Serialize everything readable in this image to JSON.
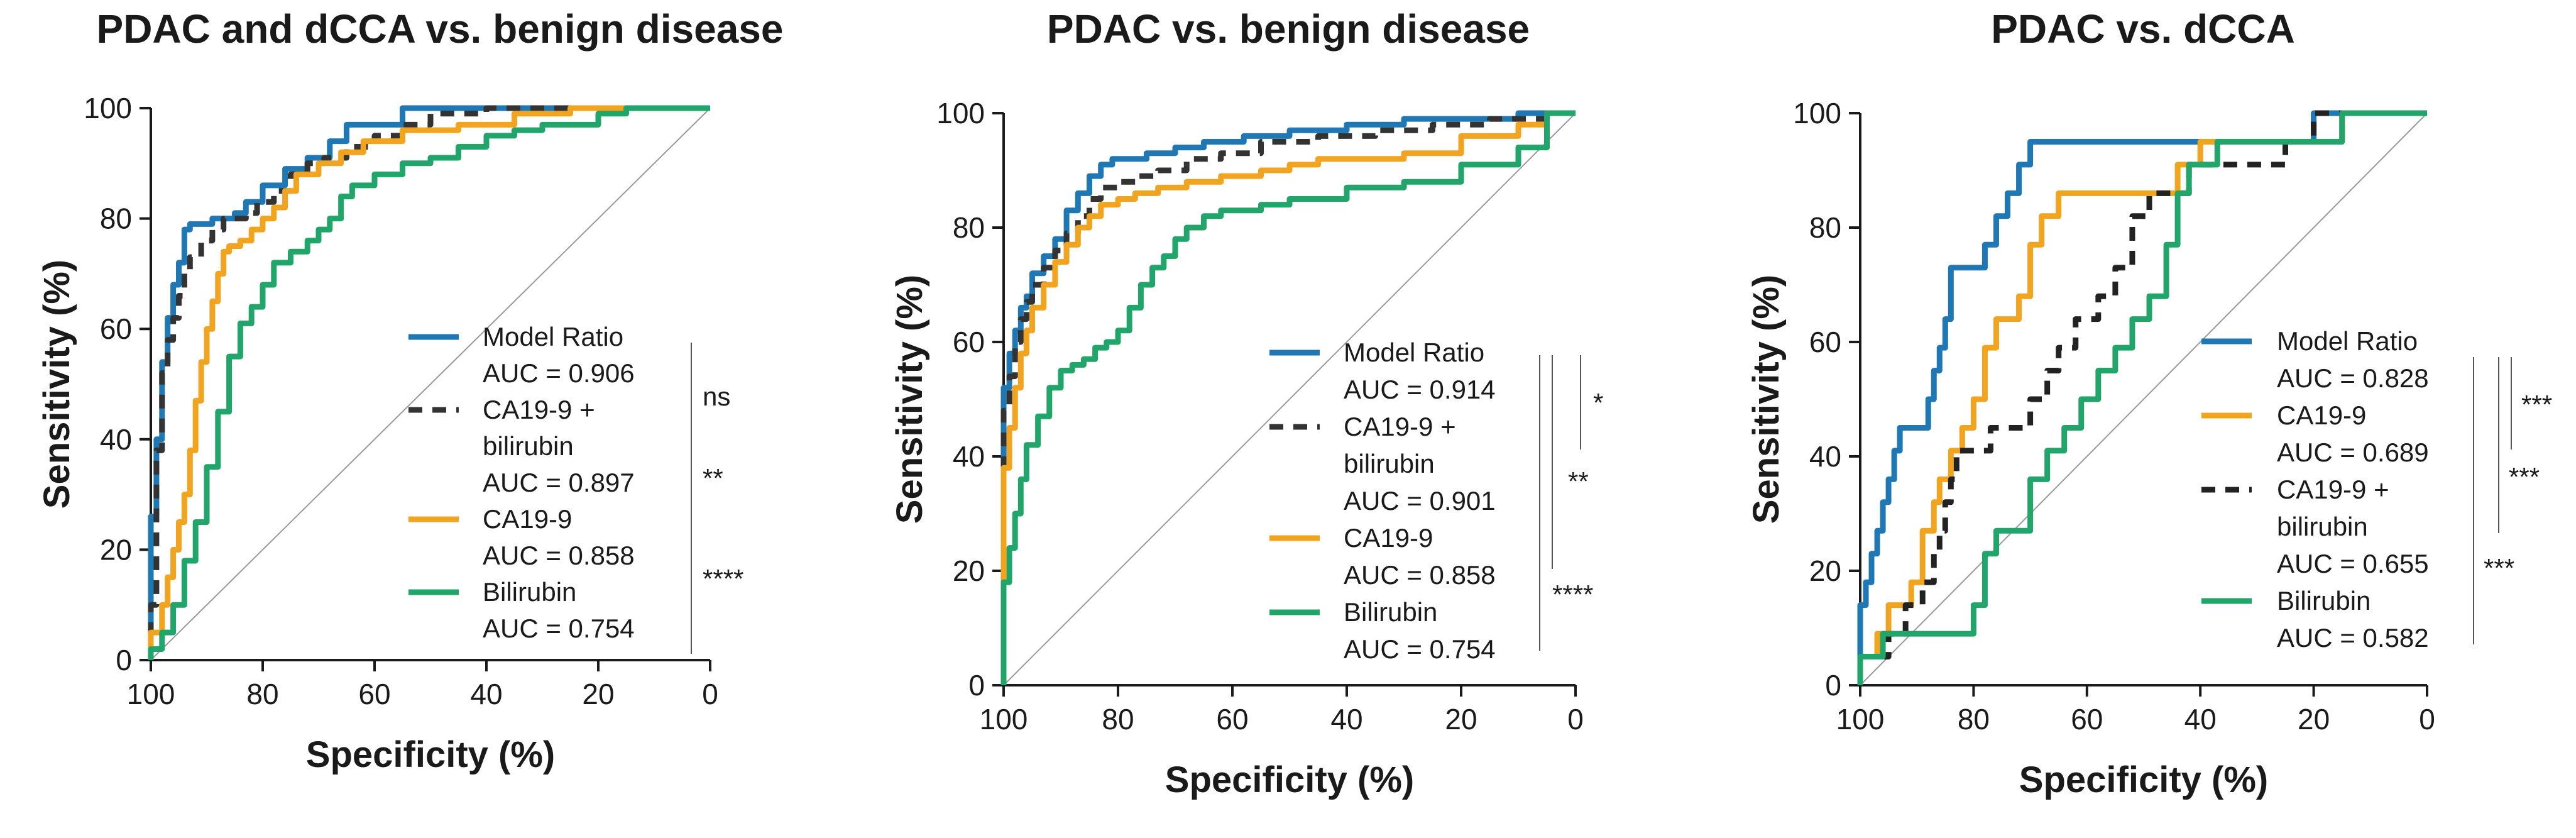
{
  "chart_data": [
    {
      "type": "line",
      "title": "PDAC and dCCA vs. benign disease",
      "xlabel": "Specificity (%)",
      "ylabel": "Sensitivity (%)",
      "xlim": [
        100,
        0
      ],
      "ylim": [
        0,
        100
      ],
      "xticks": [
        "100",
        "80",
        "60",
        "40",
        "20",
        "0"
      ],
      "yticks": [
        "0",
        "20",
        "40",
        "60",
        "80",
        "100"
      ],
      "legend_position": "bottom-right",
      "series": [
        {
          "name": "Model Ratio",
          "auc_label": "AUC = 0.906",
          "color": "#1f77b4",
          "dash": "solid",
          "x": [
            100,
            100,
            99,
            98,
            98,
            97,
            97,
            96,
            96,
            95,
            94,
            93,
            91,
            89,
            86,
            85,
            83,
            80,
            76,
            72,
            68,
            65,
            55,
            45,
            30,
            15,
            0
          ],
          "y": [
            0,
            12,
            26,
            40,
            50,
            54,
            58,
            62,
            65,
            68,
            72,
            78,
            79,
            79,
            80,
            80,
            81,
            83,
            86,
            89,
            91,
            94,
            97,
            100,
            100,
            100,
            100
          ]
        },
        {
          "name": "CA19-9 + bilirubin",
          "auc_label": "AUC = 0.897",
          "color": "#333333",
          "dash": "dashed",
          "x": [
            100,
            99,
            99,
            98,
            97,
            96,
            95,
            94,
            93,
            91,
            89,
            87,
            85,
            83,
            81,
            78,
            75,
            72,
            69,
            65,
            60,
            55,
            50,
            40,
            25,
            10,
            0
          ],
          "y": [
            0,
            10,
            22,
            38,
            52,
            58,
            62,
            66,
            70,
            73,
            76,
            78,
            80,
            80,
            81,
            83,
            85,
            88,
            90,
            91,
            93,
            95,
            97,
            99,
            100,
            100,
            100
          ]
        },
        {
          "name": "CA19-9",
          "auc_label": "AUC = 0.858",
          "color": "#f0a41f",
          "dash": "solid",
          "x": [
            100,
            98,
            97,
            96,
            95,
            94,
            93,
            92,
            91,
            90,
            89,
            88,
            87,
            86,
            84,
            82,
            80,
            78,
            76,
            74,
            70,
            66,
            62,
            55,
            45,
            35,
            25,
            10,
            0
          ],
          "y": [
            0,
            5,
            10,
            15,
            20,
            25,
            30,
            38,
            47,
            54,
            60,
            65,
            70,
            74,
            75,
            76,
            78,
            80,
            82,
            85,
            88,
            90,
            92,
            94,
            96,
            97,
            99,
            100,
            100
          ]
        },
        {
          "name": "Bilirubin",
          "auc_label": "AUC = 0.754",
          "color": "#22a56b",
          "dash": "solid",
          "x": [
            100,
            98,
            96,
            94,
            92,
            90,
            88,
            86,
            84,
            82,
            80,
            78,
            75,
            72,
            70,
            68,
            66,
            64,
            60,
            55,
            50,
            45,
            40,
            35,
            30,
            20,
            15,
            10,
            0
          ],
          "y": [
            0,
            2,
            5,
            10,
            18,
            25,
            35,
            45,
            55,
            61,
            64,
            68,
            72,
            74,
            76,
            78,
            80,
            84,
            86,
            88,
            90,
            91,
            93,
            95,
            96,
            97,
            99,
            100,
            100
          ]
        }
      ],
      "significance": [
        {
          "label": "ns",
          "between": "Model Ratio vs. CA19-9 + bilirubin"
        },
        {
          "label": "**",
          "between": "Model Ratio vs. CA19-9"
        },
        {
          "label": "****",
          "between": "Model Ratio vs. Bilirubin"
        }
      ]
    },
    {
      "type": "line",
      "title": "PDAC vs. benign disease",
      "xlabel": "Specificity (%)",
      "ylabel": "Sensitivity (%)",
      "xlim": [
        100,
        0
      ],
      "ylim": [
        0,
        100
      ],
      "xticks": [
        "100",
        "80",
        "60",
        "40",
        "20",
        "0"
      ],
      "yticks": [
        "0",
        "20",
        "40",
        "60",
        "80",
        "100"
      ],
      "legend_position": "bottom-right",
      "series": [
        {
          "name": "Model Ratio",
          "auc_label": "AUC = 0.914",
          "color": "#1f77b4",
          "dash": "solid",
          "x": [
            100,
            100,
            99,
            98,
            97,
            96,
            95,
            93,
            91,
            89,
            87,
            85,
            83,
            81,
            78,
            75,
            70,
            65,
            58,
            50,
            40,
            30,
            20,
            10,
            0
          ],
          "y": [
            0,
            50,
            52,
            58,
            62,
            66,
            68,
            72,
            75,
            78,
            83,
            86,
            89,
            91,
            92,
            92,
            93,
            94,
            95,
            96,
            97,
            98,
            99,
            99,
            100
          ]
        },
        {
          "name": "CA19-9 + bilirubin",
          "auc_label": "AUC = 0.901",
          "color": "#333333",
          "dash": "dashed",
          "x": [
            100,
            100,
            99,
            98,
            97,
            96,
            95,
            93,
            91,
            89,
            87,
            85,
            83,
            80,
            77,
            73,
            68,
            62,
            55,
            45,
            35,
            25,
            15,
            5,
            0
          ],
          "y": [
            0,
            42,
            48,
            54,
            60,
            64,
            67,
            70,
            73,
            76,
            79,
            82,
            85,
            87,
            88,
            89,
            90,
            92,
            93,
            95,
            96,
            97,
            98,
            99,
            100
          ]
        },
        {
          "name": "CA19-9",
          "auc_label": "AUC = 0.858",
          "color": "#f0a41f",
          "dash": "solid",
          "x": [
            100,
            99,
            98,
            97,
            96,
            95,
            93,
            91,
            89,
            87,
            85,
            83,
            80,
            77,
            73,
            68,
            62,
            55,
            50,
            45,
            40,
            30,
            20,
            10,
            5,
            0
          ],
          "y": [
            0,
            38,
            45,
            52,
            58,
            62,
            66,
            70,
            74,
            77,
            80,
            82,
            84,
            85,
            86,
            87,
            88,
            89,
            90,
            91,
            92,
            92,
            93,
            96,
            98,
            100
          ]
        },
        {
          "name": "Bilirubin",
          "auc_label": "AUC = 0.754",
          "color": "#22a56b",
          "dash": "solid",
          "x": [
            100,
            99,
            98,
            97,
            96,
            94,
            92,
            90,
            88,
            86,
            84,
            82,
            80,
            78,
            76,
            74,
            72,
            70,
            68,
            65,
            62,
            58,
            55,
            50,
            40,
            30,
            20,
            10,
            5,
            0
          ],
          "y": [
            0,
            18,
            24,
            30,
            36,
            42,
            47,
            52,
            55,
            56,
            57,
            59,
            60,
            62,
            66,
            70,
            73,
            75,
            78,
            80,
            82,
            83,
            83,
            84,
            85,
            87,
            88,
            91,
            94,
            100
          ]
        }
      ],
      "significance": [
        {
          "label": "*",
          "between": "Model Ratio vs. CA19-9 + bilirubin"
        },
        {
          "label": "**",
          "between": "Model Ratio vs. CA19-9"
        },
        {
          "label": "****",
          "between": "Model Ratio vs. Bilirubin"
        }
      ]
    },
    {
      "type": "line",
      "title": "PDAC vs. dCCA",
      "xlabel": "Specificity (%)",
      "ylabel": "Sensitivity (%)",
      "xlim": [
        100,
        0
      ],
      "ylim": [
        0,
        100
      ],
      "xticks": [
        "100",
        "80",
        "60",
        "40",
        "20",
        "0"
      ],
      "yticks": [
        "0",
        "20",
        "40",
        "60",
        "80",
        "100"
      ],
      "legend_position": "bottom-right",
      "series": [
        {
          "name": "Model Ratio",
          "auc_label": "AUC = 0.828",
          "color": "#1f77b4",
          "dash": "solid",
          "x": [
            100,
            99,
            98,
            97,
            96,
            95,
            94,
            93,
            92,
            90,
            88,
            87,
            86,
            85,
            84,
            83,
            81,
            78,
            76,
            74,
            72,
            70,
            68,
            64,
            60,
            50,
            40,
            30,
            25,
            20,
            17,
            10,
            0
          ],
          "y": [
            0,
            14,
            18,
            23,
            27,
            32,
            36,
            41,
            45,
            45,
            45,
            50,
            55,
            59,
            64,
            73,
            73,
            73,
            77,
            82,
            86,
            91,
            95,
            95,
            95,
            95,
            95,
            95,
            95,
            95,
            100,
            100,
            100
          ]
        },
        {
          "name": "CA19-9",
          "auc_label": "AUC = 0.689",
          "color": "#f0a41f",
          "dash": "solid",
          "x": [
            100,
            97,
            95,
            93,
            91,
            89,
            87,
            86,
            84,
            82,
            80,
            78,
            76,
            74,
            72,
            70,
            68,
            65,
            62,
            58,
            55,
            52,
            48,
            44,
            40,
            35,
            30,
            25,
            20,
            15,
            6,
            0
          ],
          "y": [
            0,
            5,
            9,
            14,
            14,
            18,
            27,
            32,
            36,
            41,
            45,
            50,
            59,
            64,
            64,
            68,
            77,
            82,
            86,
            86,
            86,
            86,
            86,
            86,
            91,
            95,
            95,
            95,
            95,
            95,
            100,
            100
          ]
        },
        {
          "name": "CA19-9 + bilirubin",
          "auc_label": "AUC = 0.655",
          "color": "#222222",
          "dash": "dashed",
          "x": [
            100,
            95,
            92,
            89,
            87,
            86,
            85,
            84,
            83,
            82,
            81,
            79,
            77,
            75,
            73,
            70,
            67,
            65,
            62,
            58,
            55,
            52,
            49,
            46,
            42,
            38,
            32,
            25,
            20,
            15,
            10,
            0
          ],
          "y": [
            0,
            5,
            9,
            14,
            18,
            23,
            27,
            32,
            36,
            41,
            41,
            41,
            41,
            45,
            45,
            45,
            50,
            55,
            59,
            64,
            68,
            73,
            82,
            86,
            86,
            91,
            91,
            91,
            95,
            100,
            100,
            100
          ]
        },
        {
          "name": "Bilirubin",
          "auc_label": "AUC = 0.582",
          "color": "#22a56b",
          "dash": "solid",
          "x": [
            100,
            96,
            92,
            89,
            86,
            83,
            80,
            78,
            76,
            73,
            70,
            67,
            64,
            61,
            58,
            55,
            52,
            49,
            46,
            44,
            42,
            40,
            37,
            34,
            30,
            25,
            20,
            15,
            12,
            8,
            0
          ],
          "y": [
            0,
            5,
            9,
            9,
            9,
            9,
            9,
            14,
            23,
            27,
            27,
            36,
            41,
            45,
            50,
            55,
            59,
            64,
            68,
            77,
            86,
            91,
            91,
            95,
            95,
            95,
            95,
            95,
            100,
            100,
            100
          ]
        }
      ],
      "significance": [
        {
          "label": "***",
          "between": "Model Ratio vs. CA19-9"
        },
        {
          "label": "***",
          "between": "Model Ratio vs. CA19-9 + bilirubin"
        },
        {
          "label": "***",
          "between": "Model Ratio vs. Bilirubin"
        }
      ]
    }
  ]
}
